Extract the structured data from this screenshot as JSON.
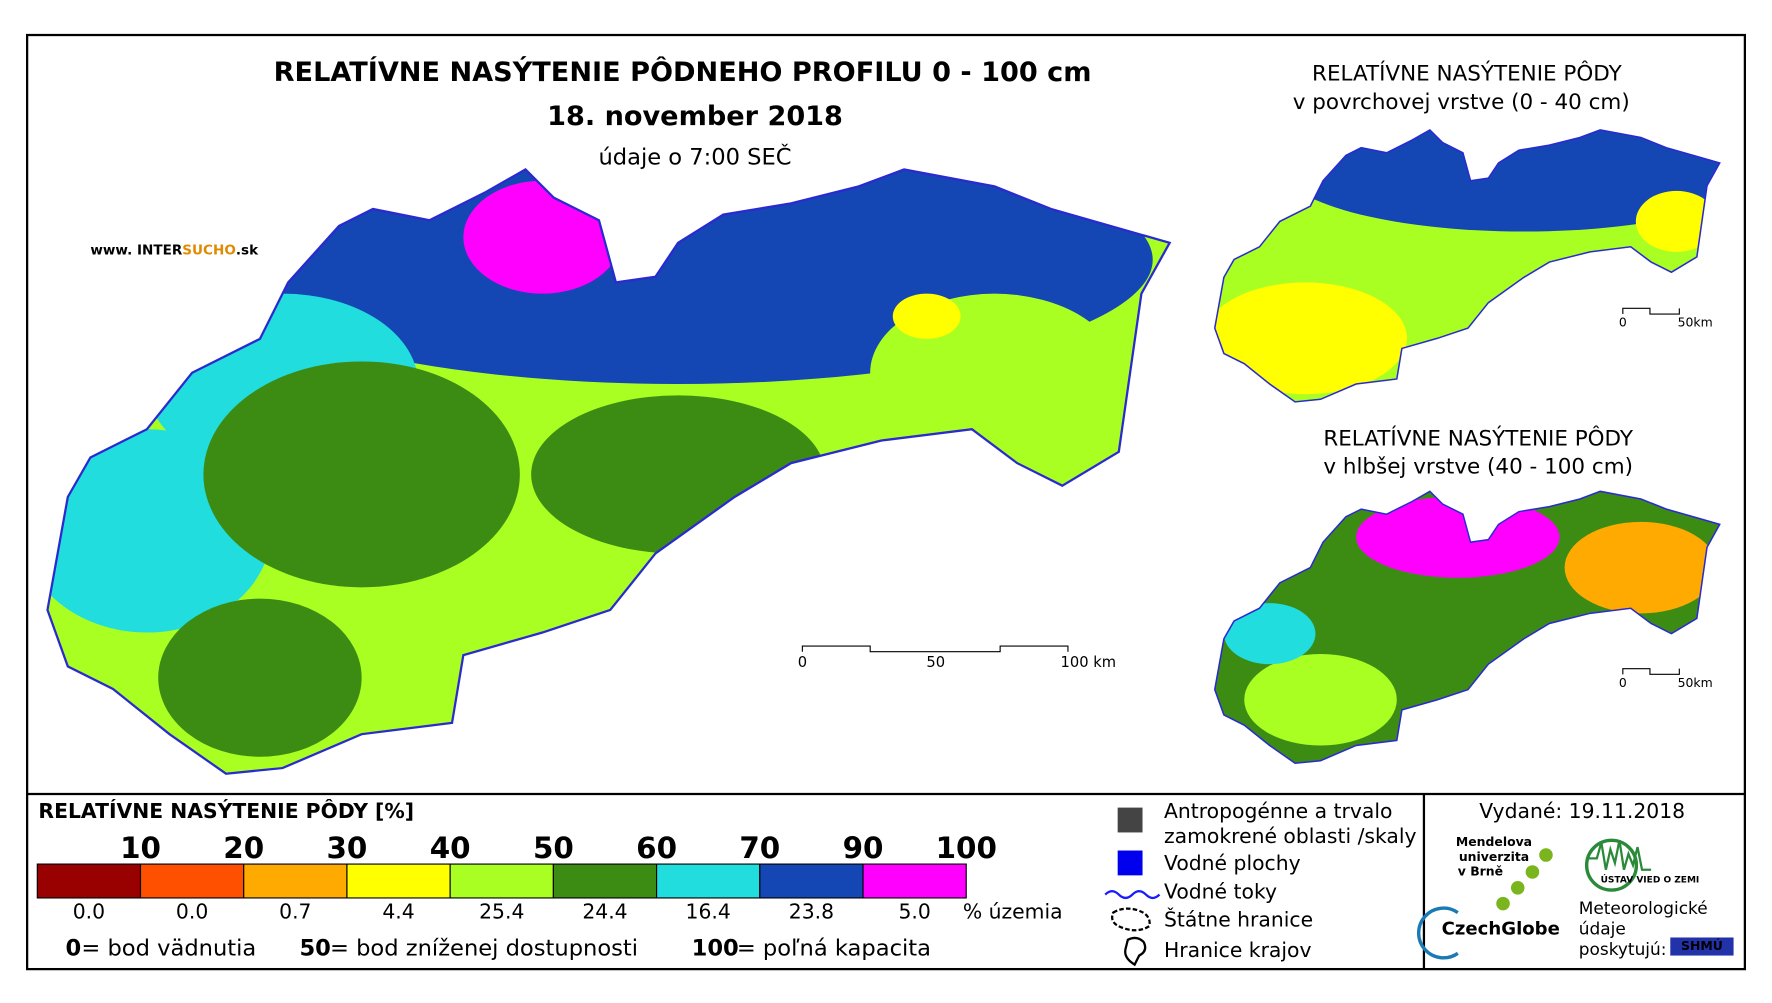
{
  "header": {
    "title": "RELATÍVNE NASÝTENIE PÔDNEHO PROFILU 0 - 100 cm",
    "date": "18. november 2018",
    "time_note": "údaje o 7:00 SEČ",
    "website": [
      "www. INTER",
      "SUCHO",
      ".sk"
    ]
  },
  "main_map": {
    "scale": [
      "0",
      "50",
      "100 km"
    ]
  },
  "inset_top": {
    "title": "RELATÍVNE NASÝTENIE PÔDY",
    "subtitle": "v povrchovej vrstve (0 - 40 cm)",
    "scale": [
      "0",
      "50km"
    ]
  },
  "inset_bottom": {
    "title": "RELATÍVNE NASÝTENIE PÔDY",
    "subtitle": "v hlbšej vrstve (40 - 100 cm)",
    "scale": [
      "0",
      "50km"
    ]
  },
  "legend": {
    "title": "RELATÍVNE NASÝTENIE PÔDY [%]",
    "bins": [
      {
        "color": "#990000",
        "threshold": "10",
        "share": "0.0"
      },
      {
        "color": "#ff5000",
        "threshold": "20",
        "share": "0.0"
      },
      {
        "color": "#ffaa00",
        "threshold": "30",
        "share": "0.7"
      },
      {
        "color": "#ffff00",
        "threshold": "40",
        "share": "4.4"
      },
      {
        "color": "#aaff22",
        "threshold": "50",
        "share": "25.4"
      },
      {
        "color": "#3c8c14",
        "threshold": "60",
        "share": "24.4"
      },
      {
        "color": "#22dddd",
        "threshold": "70",
        "share": "16.4"
      },
      {
        "color": "#1446b4",
        "threshold": "90",
        "share": "23.8"
      },
      {
        "color": "#ff00ff",
        "threshold": "100",
        "share": "5.0"
      }
    ],
    "unit": "% územia",
    "notes": [
      {
        "value": "0",
        "text": "= bod vädnutia"
      },
      {
        "value": "50",
        "text": "= bod zníženej dostupnosti"
      },
      {
        "value": "100",
        "text": "= poľná kapacita"
      }
    ]
  },
  "symbols": [
    "Antropogénne a trvalo",
    "zamokrené oblasti /skaly",
    "Vodné plochy",
    "Vodné toky",
    "Štátne hranice",
    "Hranice krajov"
  ],
  "credits": {
    "issued": "Vydané: 19.11.2018",
    "mendel": [
      "Mendelova",
      "univerzita",
      "v Brně"
    ],
    "czechglobe": "CzechGlobe",
    "ustav": "ÚSTAV VIED O ZEMI",
    "meteo": [
      "Meteorologické",
      "údaje",
      "poskytujú:"
    ],
    "shmu": "SHMÚ"
  }
}
